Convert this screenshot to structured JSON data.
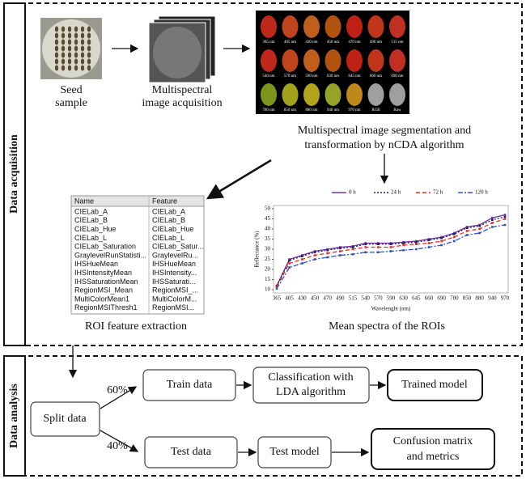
{
  "sections": {
    "acquisition": "Data acquisition",
    "analysis": "Data analysis"
  },
  "seed_label": [
    "Seed",
    "sample"
  ],
  "acquisition_label": [
    "Multispectral",
    "image acquisition"
  ],
  "band_images": [
    "365 nm",
    "405 nm",
    "430 nm",
    "450 nm",
    "470 nm",
    "490 nm",
    "515 nm",
    "540 nm",
    "570 nm",
    "590 nm",
    "630 nm",
    "645 nm",
    "660 nm",
    "690 nm",
    "780 nm",
    "850 nm",
    "880 nm",
    "940 nm",
    "970 nm",
    "RGB",
    "Raw"
  ],
  "segmentation_label": [
    "Multispectral image segmentation and",
    "transformation by nCDA algorithm"
  ],
  "feature_table": {
    "columns": [
      "Name",
      "Feature"
    ],
    "rows": [
      [
        "CIELab_A",
        "CIELab_A"
      ],
      [
        "CIELab_B",
        "CIELab_B"
      ],
      [
        "CIELab_Hue",
        "CIELab_Hue"
      ],
      [
        "CIELab_L",
        "CIELab_L"
      ],
      [
        "CIELab_Saturation",
        "CIELab_Satur..."
      ],
      [
        "GraylevelRunStatisti...",
        "GraylevelRu..."
      ],
      [
        "IHSHueMean",
        "IHSHueMean"
      ],
      [
        "IHSIntensityMean",
        "IHSIntensity..."
      ],
      [
        "IHSSaturationMean",
        "IHSSaturati..."
      ],
      [
        "RegionMSI_Mean",
        "RegionMSI_..."
      ],
      [
        "MultiColorMean1",
        "MultiColorM..."
      ],
      [
        "RegionMSIThresh1",
        "RegionMSI..."
      ]
    ]
  },
  "feature_caption": "ROI feature extraction",
  "spectra_chart": {
    "type": "line",
    "categories": [
      365,
      405,
      430,
      450,
      470,
      490,
      515,
      540,
      570,
      590,
      630,
      645,
      660,
      690,
      780,
      850,
      880,
      940,
      970
    ],
    "xlabel": "Wavelenght (nm)",
    "ylabel": "Reflectance (%)",
    "ylim": [
      10,
      50
    ],
    "yticks": [
      10,
      15,
      20,
      25,
      30,
      35,
      40,
      45,
      50
    ],
    "series": [
      {
        "name": "0 h",
        "color": "#7030a0",
        "values": [
          12,
          25,
          27,
          29,
          30,
          31,
          31.5,
          33,
          33,
          33,
          33.5,
          34,
          35,
          36,
          38,
          41,
          42,
          45.5,
          47
        ]
      },
      {
        "name": "24 h",
        "color": "#1f2060",
        "values": [
          11.8,
          24.5,
          26.5,
          28.5,
          29.5,
          30.5,
          31,
          32.5,
          32.5,
          32.5,
          33,
          33.5,
          34.5,
          35.5,
          37.5,
          40.5,
          41.5,
          44.5,
          46
        ]
      },
      {
        "name": "72 h",
        "color": "#e03020",
        "values": [
          11.5,
          23,
          25,
          27,
          28,
          29,
          30,
          31,
          31,
          31,
          32,
          32.5,
          33,
          34,
          36,
          39,
          40,
          43,
          45
        ]
      },
      {
        "name": "120 h",
        "color": "#3050c0",
        "values": [
          10.5,
          21,
          23,
          25,
          26,
          27,
          27.5,
          28.5,
          28.5,
          29,
          29.5,
          30,
          31,
          32,
          34,
          37,
          38,
          41,
          42
        ]
      }
    ]
  },
  "spectra_caption": "Mean spectra of the ROIs",
  "analysis": {
    "split": "Split data",
    "train_pct": "60%",
    "test_pct": "40%",
    "train": "Train data",
    "classify": [
      "Classification with",
      "LDA algorithm"
    ],
    "trained": "Trained model",
    "test": "Test data",
    "test_model": "Test model",
    "confusion": [
      "Confusion matrix",
      "and metrics"
    ]
  }
}
